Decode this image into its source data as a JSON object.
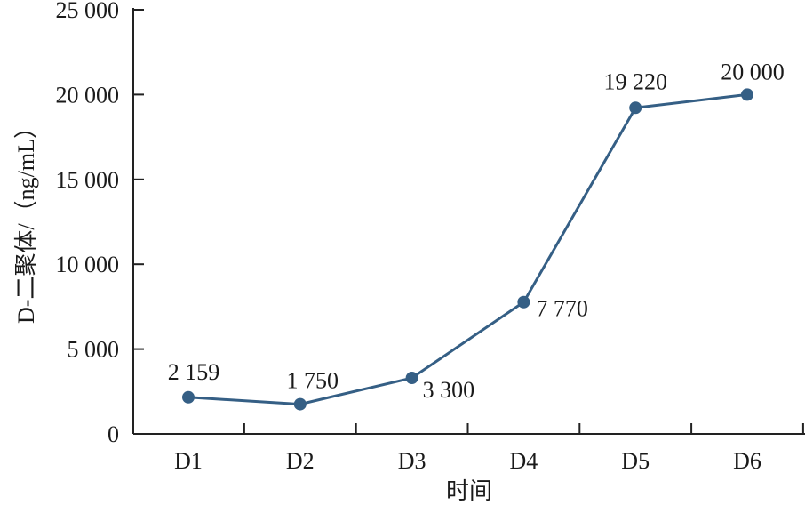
{
  "chart_data": {
    "type": "line",
    "title": "",
    "xlabel": "时间",
    "ylabel": "D-二聚体/（ng/mL）",
    "categories": [
      "D1",
      "D2",
      "D3",
      "D4",
      "D5",
      "D6"
    ],
    "series": [
      {
        "values": [
          2159,
          1750,
          3300,
          7770,
          19220,
          20000
        ],
        "labels": [
          "2 159",
          "1 750",
          "3 300",
          "7 770",
          "19 220",
          "20 000"
        ]
      }
    ],
    "ylim": [
      0,
      25000
    ],
    "yticks": [
      0,
      5000,
      10000,
      15000,
      20000,
      25000
    ],
    "ytick_labels": [
      "0",
      "5 000",
      "10 000",
      "15 000",
      "20 000",
      "25 000"
    ],
    "grid": false,
    "legend": "none",
    "colors": {
      "series": "#355f85",
      "axis": "#222222",
      "text": "#1a1a1a"
    }
  }
}
